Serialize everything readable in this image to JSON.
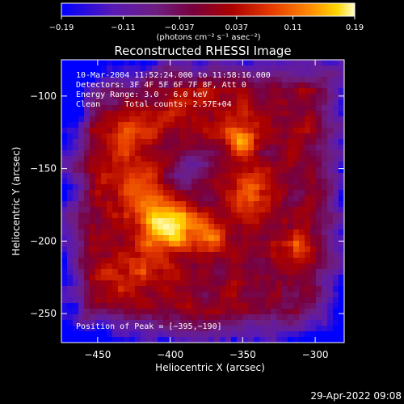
{
  "chart_data": {
    "type": "heatmap",
    "title": "Reconstructed RHESSI Image",
    "xlabel": "Heliocentric X (arcsec)",
    "ylabel": "Heliocentric Y (arcsec)",
    "xlim": [
      -475,
      -280
    ],
    "ylim": [
      -270,
      -75
    ],
    "x_ticks": [
      {
        "value": -450,
        "label": "−450"
      },
      {
        "value": -400,
        "label": "−400"
      },
      {
        "value": -350,
        "label": "−350"
      },
      {
        "value": -300,
        "label": "−300"
      }
    ],
    "y_ticks": [
      {
        "value": -100,
        "label": "−100"
      },
      {
        "value": -150,
        "label": "−150"
      },
      {
        "value": -200,
        "label": "−200"
      },
      {
        "value": -250,
        "label": "−250"
      }
    ],
    "colorbar": {
      "range": [
        -0.19,
        0.19
      ],
      "ticks": [
        {
          "value": -0.19,
          "label": "−0.19"
        },
        {
          "value": -0.11,
          "label": "−0.11"
        },
        {
          "value": -0.037,
          "label": "−0.037"
        },
        {
          "value": 0.037,
          "label": "0.037"
        },
        {
          "value": 0.11,
          "label": "0.11"
        },
        {
          "value": 0.19,
          "label": "0.19"
        }
      ],
      "unit_label": "(photons cm⁻² s⁻¹ asec⁻²)"
    },
    "annotations": [
      "10-Mar-2004 11:52:24.000 to 11:58:16.000",
      "Detectors: 3F 4F 5F 6F 7F 8F, Att 0",
      "Energy Range: 3.0 - 6.0 keV",
      "Clean     Total counts: 2.57E+04"
    ],
    "peak_annotation": "Position of Peak = [−395,−190]",
    "peak": {
      "x": -395,
      "y": -190
    },
    "colormap": [
      "#0000ff",
      "#5a1ab4",
      "#6e1e82",
      "#78003c",
      "#aa0000",
      "#e63c00",
      "#ff8c00",
      "#ffd700",
      "#ffffc8"
    ]
  },
  "footer": {
    "timestamp": "29-Apr-2022 09:08"
  }
}
